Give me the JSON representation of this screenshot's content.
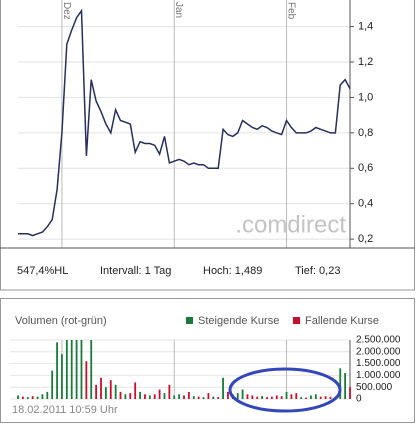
{
  "chart_data": [
    {
      "type": "line",
      "categories": [
        null,
        null,
        null,
        null,
        null,
        null,
        null,
        null,
        null,
        "Dez",
        null,
        null,
        null,
        null,
        null,
        null,
        null,
        null,
        null,
        null,
        null,
        null,
        null,
        null,
        null,
        null,
        null,
        null,
        null,
        null,
        null,
        null,
        "Jan",
        null,
        null,
        null,
        null,
        null,
        null,
        null,
        null,
        null,
        null,
        null,
        null,
        null,
        null,
        null,
        null,
        null,
        null,
        null,
        null,
        null,
        null,
        "Feb",
        null,
        null,
        null,
        null,
        null,
        null,
        null,
        null,
        null,
        null,
        null,
        null,
        null
      ],
      "series": [
        {
          "color": "#26305a",
          "values": [
            0.23,
            0.23,
            0.23,
            0.22,
            0.23,
            0.24,
            0.27,
            0.31,
            0.48,
            0.8,
            1.3,
            1.38,
            1.45,
            1.489,
            0.67,
            1.1,
            0.98,
            0.92,
            0.85,
            0.8,
            0.93,
            0.87,
            0.86,
            0.85,
            0.69,
            0.75,
            0.74,
            0.74,
            0.73,
            0.68,
            0.78,
            0.63,
            0.64,
            0.65,
            0.64,
            0.62,
            0.63,
            0.62,
            0.62,
            0.6,
            0.6,
            0.6,
            0.82,
            0.79,
            0.78,
            0.8,
            0.87,
            0.85,
            0.83,
            0.82,
            0.84,
            0.83,
            0.81,
            0.8,
            0.79,
            0.87,
            0.83,
            0.8,
            0.8,
            0.8,
            0.81,
            0.83,
            0.82,
            0.81,
            0.8,
            0.8,
            1.07,
            1.1,
            1.05
          ]
        }
      ],
      "ylim": [
        0.15,
        1.55
      ],
      "yticks": [
        {
          "value": 0.2,
          "label": "0,2"
        },
        {
          "value": 0.4,
          "label": "0,4"
        },
        {
          "value": 0.6,
          "label": "0,6"
        },
        {
          "value": 0.8,
          "label": "0,8"
        },
        {
          "value": 1.0,
          "label": "1,0"
        },
        {
          "value": 1.2,
          "label": "1,2"
        },
        {
          "value": 1.4,
          "label": "1,4"
        }
      ],
      "grid": true,
      "watermark": ".comdirect",
      "stats": [
        "547,4%HL",
        "Intervall: 1 Tag",
        "Hoch: 1,489",
        "Tief: 0,23"
      ]
    },
    {
      "type": "bar",
      "title": "Volumen (rot-grün)",
      "series": [
        {
          "name": "Steigende Kurse",
          "color": "#1a7a3a",
          "values": [
            150000,
            null,
            80000,
            null,
            100000,
            200000,
            300000,
            1200000,
            2400000,
            1900000,
            2500000,
            2500000,
            2500000,
            2500000,
            null,
            2500000,
            null,
            null,
            500000,
            null,
            600000,
            null,
            200000,
            null,
            null,
            300000,
            null,
            150000,
            null,
            null,
            250000,
            null,
            150000,
            200000,
            null,
            null,
            120000,
            null,
            80000,
            null,
            100000,
            null,
            900000,
            null,
            null,
            250000,
            400000,
            null,
            null,
            null,
            120000,
            null,
            null,
            null,
            null,
            300000,
            null,
            null,
            80000,
            null,
            150000,
            200000,
            null,
            null,
            null,
            80000,
            1300000,
            1100000,
            null
          ]
        },
        {
          "name": "Fallende Kurse",
          "color": "#c8102e",
          "values": [
            null,
            100000,
            null,
            120000,
            null,
            null,
            null,
            null,
            null,
            null,
            null,
            null,
            null,
            null,
            1600000,
            null,
            600000,
            900000,
            null,
            800000,
            null,
            300000,
            null,
            250000,
            700000,
            null,
            200000,
            null,
            200000,
            400000,
            null,
            600000,
            null,
            null,
            150000,
            300000,
            null,
            100000,
            null,
            250000,
            null,
            80000,
            null,
            300000,
            200000,
            null,
            null,
            200000,
            150000,
            100000,
            null,
            80000,
            100000,
            150000,
            120000,
            null,
            200000,
            250000,
            null,
            60000,
            null,
            null,
            100000,
            120000,
            90000,
            null,
            null,
            null,
            500000
          ]
        }
      ],
      "ylim": [
        0,
        2500000
      ],
      "yticks": [
        {
          "value": 0,
          "label": "0"
        },
        {
          "value": 500000,
          "label": "500.000"
        },
        {
          "value": 1000000,
          "label": "1.000.000"
        },
        {
          "value": 1500000,
          "label": "1.500.000"
        },
        {
          "value": 2000000,
          "label": "2.000.000"
        },
        {
          "value": 2500000,
          "label": "2.500.000"
        }
      ],
      "grid": true,
      "timestamp": "18.02.2011 10:59 Uhr"
    }
  ]
}
